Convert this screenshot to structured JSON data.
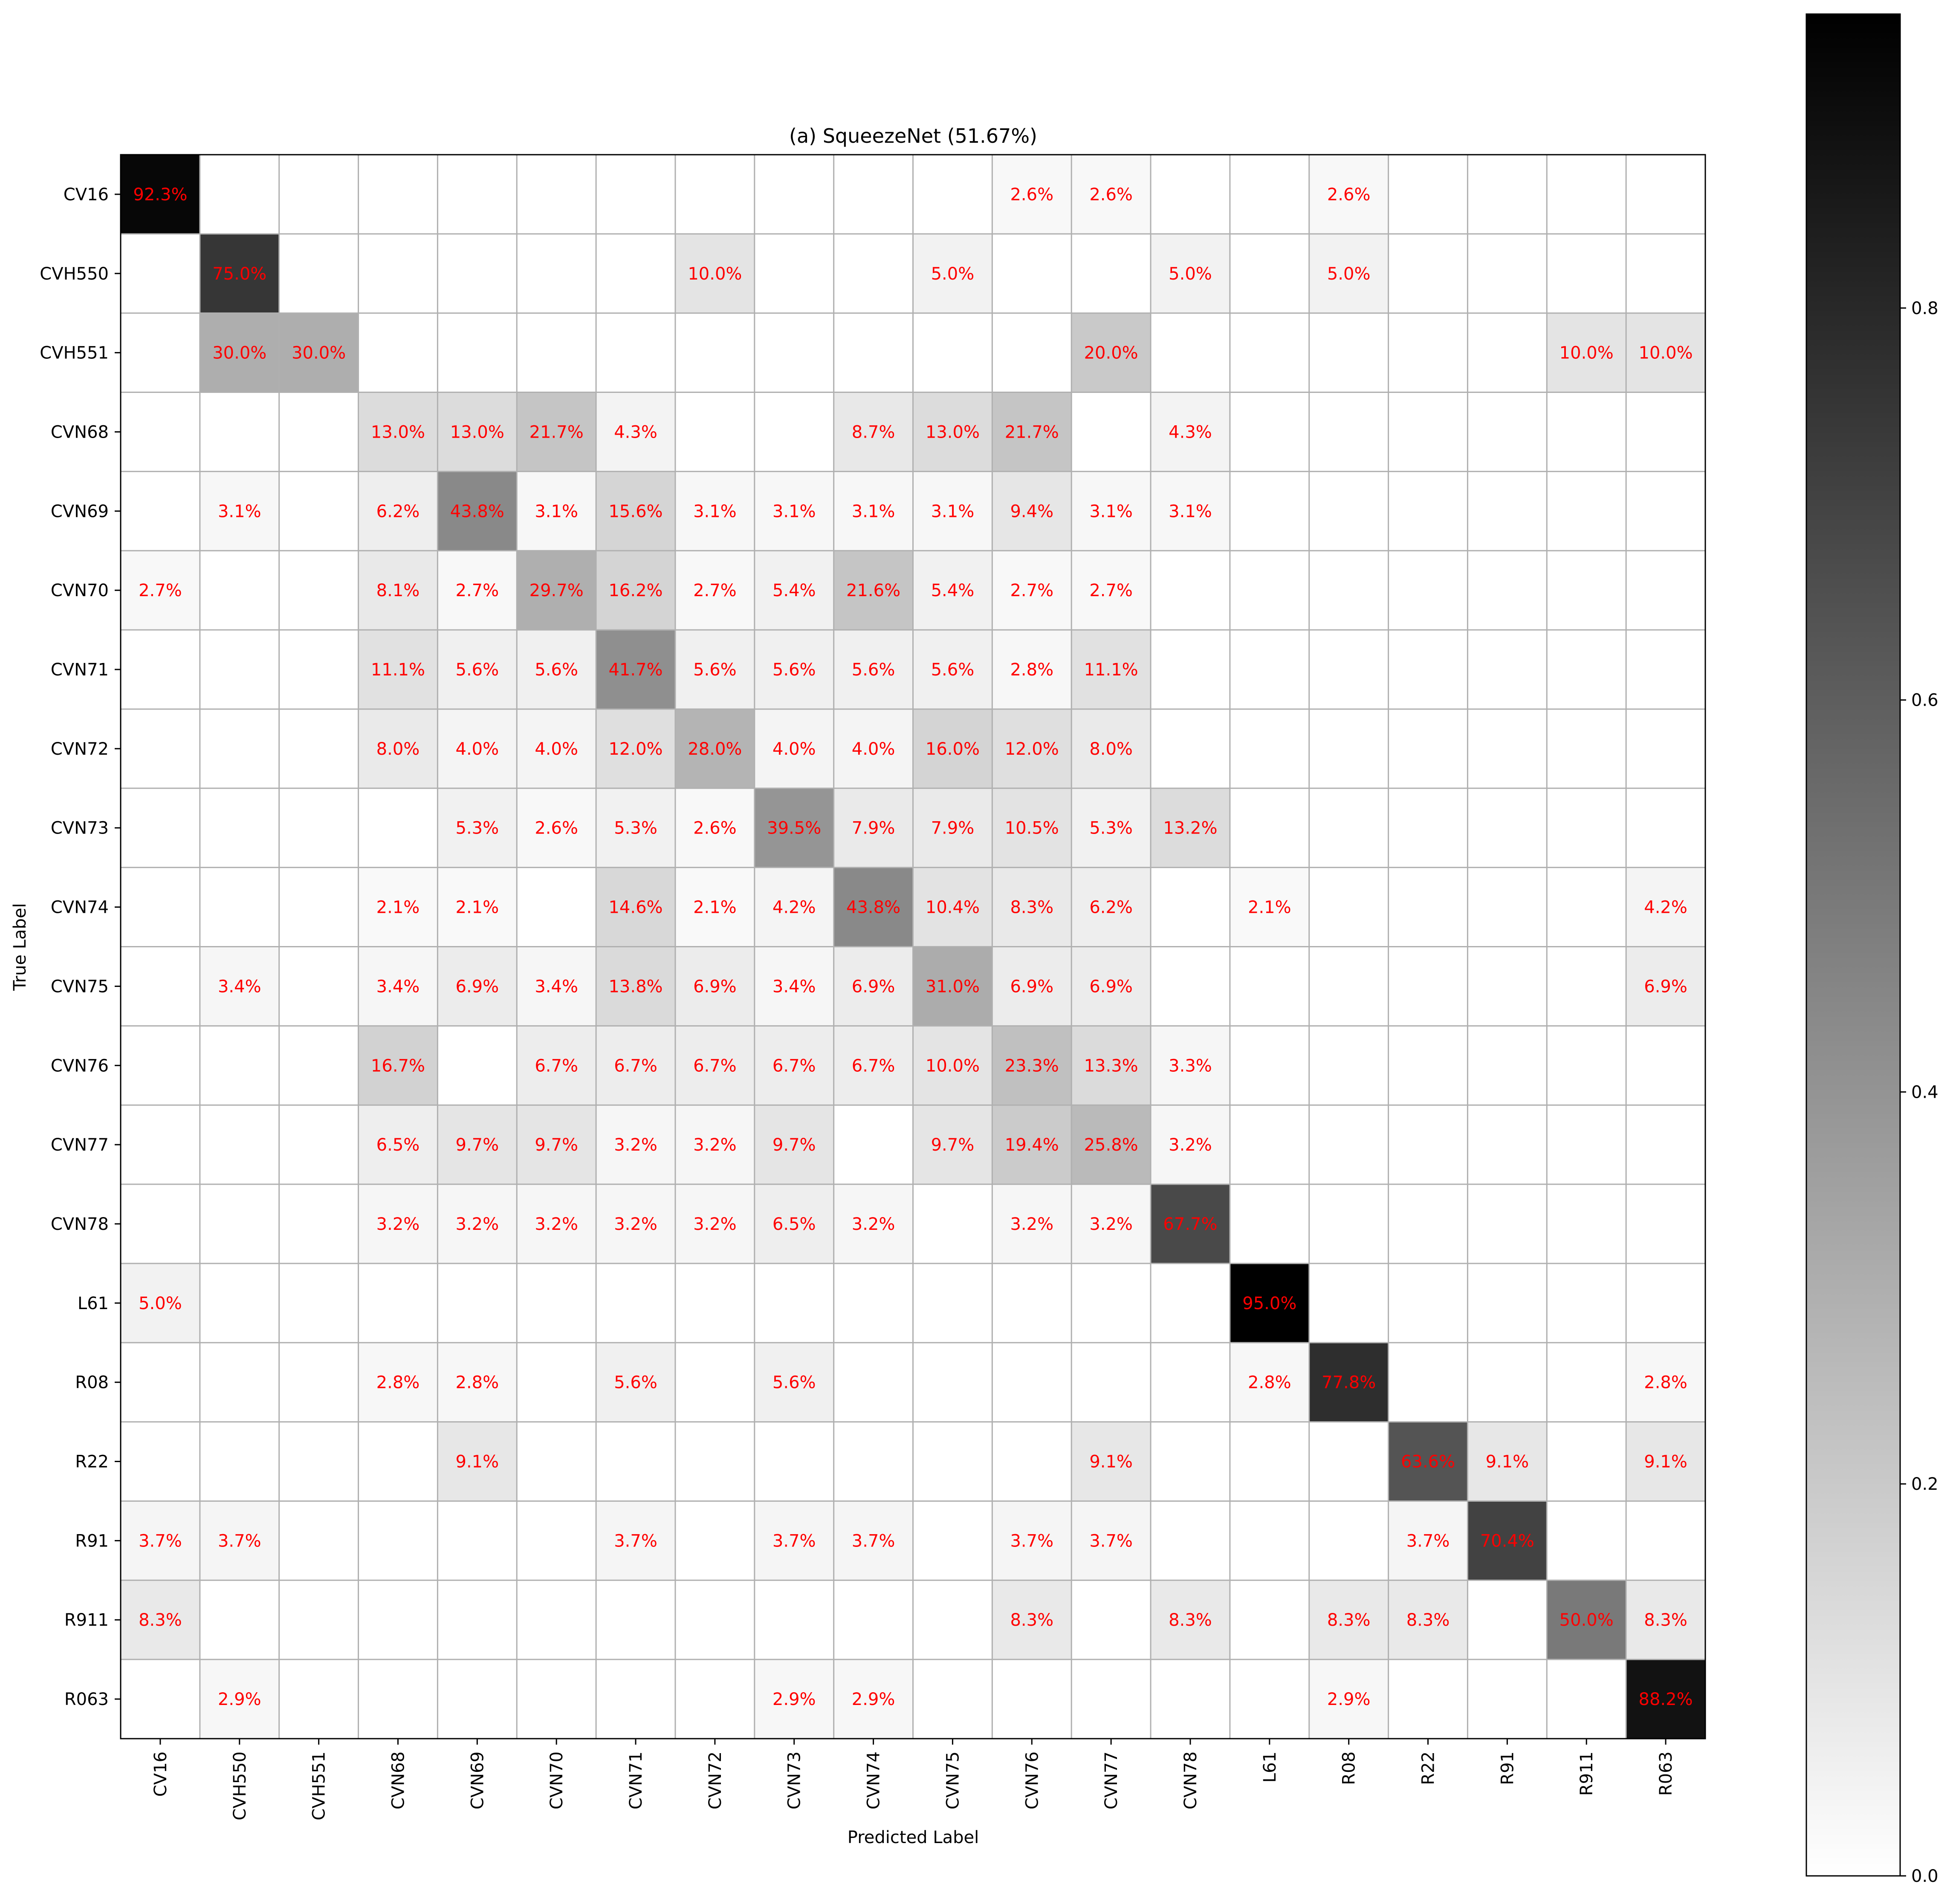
{
  "chart_data": {
    "type": "heatmap",
    "title": "(a) SqueezeNet (51.67%)",
    "xlabel": "Predicted Label",
    "ylabel": "True Label",
    "labels": [
      "CV16",
      "CVH550",
      "CVH551",
      "CVN68",
      "CVN69",
      "CVN70",
      "CVN71",
      "CVN72",
      "CVN73",
      "CVN74",
      "CVN75",
      "CVN76",
      "CVN77",
      "CVN78",
      "L61",
      "R08",
      "R22",
      "R91",
      "R911",
      "R063"
    ],
    "values": [
      [
        0.923,
        0,
        0,
        0,
        0,
        0,
        0,
        0,
        0,
        0,
        0,
        0.026,
        0.026,
        0,
        0,
        0.026,
        0,
        0,
        0,
        0
      ],
      [
        0,
        0.75,
        0,
        0,
        0,
        0,
        0,
        0.1,
        0,
        0,
        0.05,
        0,
        0,
        0.05,
        0,
        0.05,
        0,
        0,
        0,
        0
      ],
      [
        0,
        0.3,
        0.3,
        0,
        0,
        0,
        0,
        0,
        0,
        0,
        0,
        0,
        0.2,
        0,
        0,
        0,
        0,
        0,
        0.1,
        0.1
      ],
      [
        0,
        0,
        0,
        0.13,
        0.13,
        0.217,
        0.043,
        0,
        0,
        0.087,
        0.13,
        0.217,
        0,
        0.043,
        0,
        0,
        0,
        0,
        0,
        0
      ],
      [
        0,
        0.031,
        0,
        0.062,
        0.438,
        0.031,
        0.156,
        0.031,
        0.031,
        0.031,
        0.031,
        0.094,
        0.031,
        0.031,
        0,
        0,
        0,
        0,
        0,
        0
      ],
      [
        0.027,
        0,
        0,
        0.081,
        0.027,
        0.297,
        0.162,
        0.027,
        0.054,
        0.216,
        0.054,
        0.027,
        0.027,
        0,
        0,
        0,
        0,
        0,
        0,
        0
      ],
      [
        0,
        0,
        0,
        0.111,
        0.056,
        0.056,
        0.417,
        0.056,
        0.056,
        0.056,
        0.056,
        0.028,
        0.111,
        0,
        0,
        0,
        0,
        0,
        0,
        0
      ],
      [
        0,
        0,
        0,
        0.08,
        0.04,
        0.04,
        0.12,
        0.28,
        0.04,
        0.04,
        0.16,
        0.12,
        0.08,
        0,
        0,
        0,
        0,
        0,
        0,
        0
      ],
      [
        0,
        0,
        0,
        0,
        0.053,
        0.026,
        0.053,
        0.026,
        0.395,
        0.079,
        0.079,
        0.105,
        0.053,
        0.132,
        0,
        0,
        0,
        0,
        0,
        0
      ],
      [
        0,
        0,
        0,
        0.021,
        0.021,
        0,
        0.146,
        0.021,
        0.042,
        0.438,
        0.104,
        0.083,
        0.062,
        0,
        0.021,
        0,
        0,
        0,
        0,
        0.042
      ],
      [
        0,
        0.034,
        0,
        0.034,
        0.069,
        0.034,
        0.138,
        0.069,
        0.034,
        0.069,
        0.31,
        0.069,
        0.069,
        0,
        0,
        0,
        0,
        0,
        0,
        0.069
      ],
      [
        0,
        0,
        0,
        0.167,
        0,
        0.067,
        0.067,
        0.067,
        0.067,
        0.067,
        0.1,
        0.233,
        0.133,
        0.033,
        0,
        0,
        0,
        0,
        0,
        0
      ],
      [
        0,
        0,
        0,
        0.065,
        0.097,
        0.097,
        0.032,
        0.032,
        0.097,
        0,
        0.097,
        0.194,
        0.258,
        0.032,
        0,
        0,
        0,
        0,
        0,
        0
      ],
      [
        0,
        0,
        0,
        0.032,
        0.032,
        0.032,
        0.032,
        0.032,
        0.065,
        0.032,
        0,
        0.032,
        0.032,
        0.677,
        0,
        0,
        0,
        0,
        0,
        0
      ],
      [
        0.05,
        0,
        0,
        0,
        0,
        0,
        0,
        0,
        0,
        0,
        0,
        0,
        0,
        0,
        0.95,
        0,
        0,
        0,
        0,
        0
      ],
      [
        0,
        0,
        0,
        0.028,
        0.028,
        0,
        0.056,
        0,
        0.056,
        0,
        0,
        0,
        0,
        0,
        0.028,
        0.778,
        0,
        0,
        0,
        0.028
      ],
      [
        0,
        0,
        0,
        0,
        0.091,
        0,
        0,
        0,
        0,
        0,
        0,
        0,
        0.091,
        0,
        0,
        0,
        0.636,
        0.091,
        0,
        0.091
      ],
      [
        0.037,
        0.037,
        0,
        0,
        0,
        0,
        0.037,
        0,
        0.037,
        0.037,
        0,
        0.037,
        0.037,
        0,
        0,
        0,
        0.037,
        0.704,
        0,
        0
      ],
      [
        0.083,
        0,
        0,
        0,
        0,
        0,
        0,
        0,
        0,
        0,
        0,
        0.083,
        0,
        0.083,
        0,
        0.083,
        0.083,
        0,
        0.5,
        0.083
      ],
      [
        0,
        0.029,
        0,
        0,
        0,
        0,
        0,
        0,
        0.029,
        0.029,
        0,
        0,
        0,
        0,
        0,
        0.029,
        0,
        0,
        0,
        0.882
      ]
    ],
    "cell_text": [
      [
        "92.3%",
        "",
        "",
        "",
        "",
        "",
        "",
        "",
        "",
        "",
        "",
        "2.6%",
        "2.6%",
        "",
        "",
        "2.6%",
        "",
        "",
        "",
        ""
      ],
      [
        "",
        "75.0%",
        "",
        "",
        "",
        "",
        "",
        "10.0%",
        "",
        "",
        "5.0%",
        "",
        "",
        "5.0%",
        "",
        "5.0%",
        "",
        "",
        "",
        ""
      ],
      [
        "",
        "30.0%",
        "30.0%",
        "",
        "",
        "",
        "",
        "",
        "",
        "",
        "",
        "",
        "20.0%",
        "",
        "",
        "",
        "",
        "",
        "10.0%",
        "10.0%"
      ],
      [
        "",
        "",
        "",
        "13.0%",
        "13.0%",
        "21.7%",
        "4.3%",
        "",
        "",
        "8.7%",
        "13.0%",
        "21.7%",
        "",
        "4.3%",
        "",
        "",
        "",
        "",
        "",
        ""
      ],
      [
        "",
        "3.1%",
        "",
        "6.2%",
        "43.8%",
        "3.1%",
        "15.6%",
        "3.1%",
        "3.1%",
        "3.1%",
        "3.1%",
        "9.4%",
        "3.1%",
        "3.1%",
        "",
        "",
        "",
        "",
        "",
        ""
      ],
      [
        "2.7%",
        "",
        "",
        "8.1%",
        "2.7%",
        "29.7%",
        "16.2%",
        "2.7%",
        "5.4%",
        "21.6%",
        "5.4%",
        "2.7%",
        "2.7%",
        "",
        "",
        "",
        "",
        "",
        "",
        ""
      ],
      [
        "",
        "",
        "",
        "11.1%",
        "5.6%",
        "5.6%",
        "41.7%",
        "5.6%",
        "5.6%",
        "5.6%",
        "5.6%",
        "2.8%",
        "11.1%",
        "",
        "",
        "",
        "",
        "",
        "",
        ""
      ],
      [
        "",
        "",
        "",
        "8.0%",
        "4.0%",
        "4.0%",
        "12.0%",
        "28.0%",
        "4.0%",
        "4.0%",
        "16.0%",
        "12.0%",
        "8.0%",
        "",
        "",
        "",
        "",
        "",
        "",
        ""
      ],
      [
        "",
        "",
        "",
        "",
        "5.3%",
        "2.6%",
        "5.3%",
        "2.6%",
        "39.5%",
        "7.9%",
        "7.9%",
        "10.5%",
        "5.3%",
        "13.2%",
        "",
        "",
        "",
        "",
        "",
        ""
      ],
      [
        "",
        "",
        "",
        "2.1%",
        "2.1%",
        "",
        "14.6%",
        "2.1%",
        "4.2%",
        "43.8%",
        "10.4%",
        "8.3%",
        "6.2%",
        "",
        "2.1%",
        "",
        "",
        "",
        "",
        "4.2%"
      ],
      [
        "",
        "3.4%",
        "",
        "3.4%",
        "6.9%",
        "3.4%",
        "13.8%",
        "6.9%",
        "3.4%",
        "6.9%",
        "31.0%",
        "6.9%",
        "6.9%",
        "",
        "",
        "",
        "",
        "",
        "",
        "6.9%"
      ],
      [
        "",
        "",
        "",
        "16.7%",
        "",
        "6.7%",
        "6.7%",
        "6.7%",
        "6.7%",
        "6.7%",
        "10.0%",
        "23.3%",
        "13.3%",
        "3.3%",
        "",
        "",
        "",
        "",
        "",
        ""
      ],
      [
        "",
        "",
        "",
        "6.5%",
        "9.7%",
        "9.7%",
        "3.2%",
        "3.2%",
        "9.7%",
        "",
        "9.7%",
        "19.4%",
        "25.8%",
        "3.2%",
        "",
        "",
        "",
        "",
        "",
        ""
      ],
      [
        "",
        "",
        "",
        "3.2%",
        "3.2%",
        "3.2%",
        "3.2%",
        "3.2%",
        "6.5%",
        "3.2%",
        "",
        "3.2%",
        "3.2%",
        "67.7%",
        "",
        "",
        "",
        "",
        "",
        ""
      ],
      [
        "5.0%",
        "",
        "",
        "",
        "",
        "",
        "",
        "",
        "",
        "",
        "",
        "",
        "",
        "",
        "95.0%",
        "",
        "",
        "",
        "",
        ""
      ],
      [
        "",
        "",
        "",
        "2.8%",
        "2.8%",
        "",
        "5.6%",
        "",
        "5.6%",
        "",
        "",
        "",
        "",
        "",
        "2.8%",
        "77.8%",
        "",
        "",
        "",
        "2.8%"
      ],
      [
        "",
        "",
        "",
        "",
        "9.1%",
        "",
        "",
        "",
        "",
        "",
        "",
        "",
        "9.1%",
        "",
        "",
        "",
        "63.6%",
        "9.1%",
        "",
        "9.1%"
      ],
      [
        "3.7%",
        "3.7%",
        "",
        "",
        "",
        "",
        "3.7%",
        "",
        "3.7%",
        "3.7%",
        "",
        "3.7%",
        "3.7%",
        "",
        "",
        "",
        "3.7%",
        "70.4%",
        "",
        ""
      ],
      [
        "8.3%",
        "",
        "",
        "",
        "",
        "",
        "",
        "",
        "",
        "",
        "",
        "8.3%",
        "",
        "8.3%",
        "",
        "8.3%",
        "8.3%",
        "",
        "50.0%",
        "8.3%"
      ],
      [
        "",
        "2.9%",
        "",
        "",
        "",
        "",
        "",
        "",
        "2.9%",
        "2.9%",
        "",
        "",
        "",
        "",
        "",
        "2.9%",
        "",
        "",
        "",
        "88.2%"
      ]
    ],
    "vmin": 0,
    "vmax": 0.95,
    "colormap": "white-to-black",
    "cell_text_color": "#ff0000",
    "grid": true,
    "colorbar": {
      "ticks": [
        0.0,
        0.2,
        0.4,
        0.6,
        0.8
      ],
      "tick_labels": [
        "0.0",
        "0.2",
        "0.4",
        "0.6",
        "0.8"
      ]
    }
  }
}
